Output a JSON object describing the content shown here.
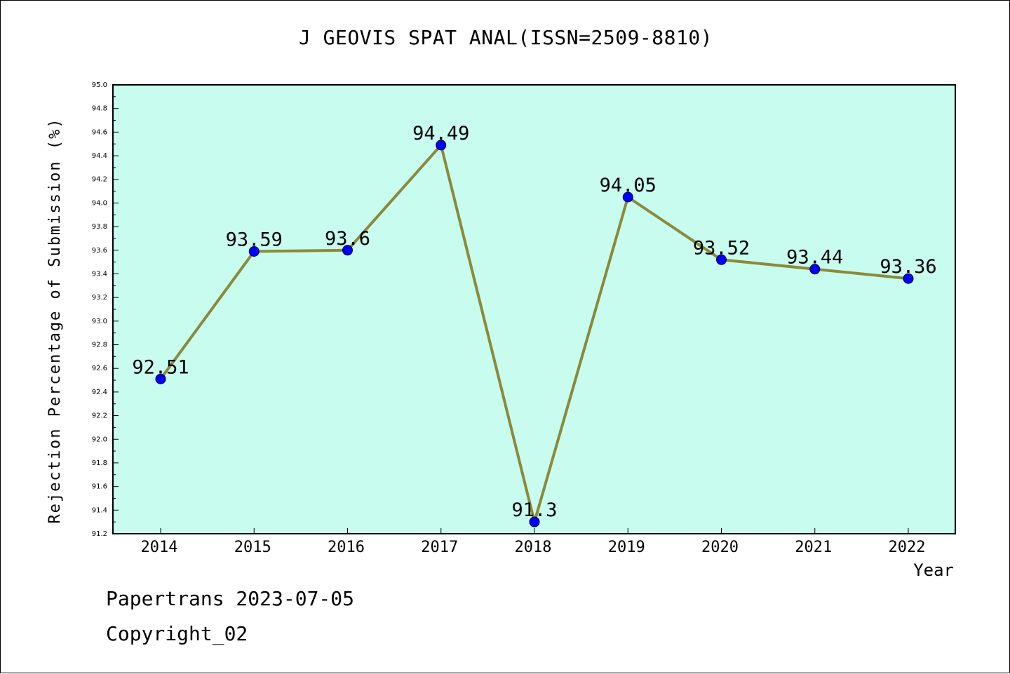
{
  "chart_data": {
    "type": "line",
    "title": "J GEOVIS SPAT ANAL(ISSN=2509-8810)",
    "xlabel": "Year",
    "ylabel": "Rejection Percentage of Submission (%)",
    "categories": [
      "2014",
      "2015",
      "2016",
      "2017",
      "2018",
      "2019",
      "2020",
      "2021",
      "2022"
    ],
    "values": [
      92.51,
      93.59,
      93.6,
      94.49,
      91.3,
      94.05,
      93.52,
      93.44,
      93.36
    ],
    "data_labels": [
      "92.51",
      "93.59",
      "93.6",
      "94.49",
      "91.3",
      "94.05",
      "93.52",
      "93.44",
      "93.36"
    ],
    "ylim": [
      91.2,
      95.0
    ],
    "yticks": [
      "91.2",
      "91.4",
      "91.6",
      "91.8",
      "92.0",
      "92.2",
      "92.4",
      "92.6",
      "92.8",
      "93.0",
      "93.2",
      "93.4",
      "93.6",
      "93.8",
      "94.0",
      "94.2",
      "94.4",
      "94.6",
      "94.8",
      "95.0"
    ],
    "grid": false,
    "colors": {
      "plot_background": "#c8fcee",
      "line": "#8b8a3a",
      "marker": "#0000ff"
    }
  },
  "footer": {
    "line1": "Papertrans 2023-07-05",
    "line2": "Copyright_02"
  }
}
